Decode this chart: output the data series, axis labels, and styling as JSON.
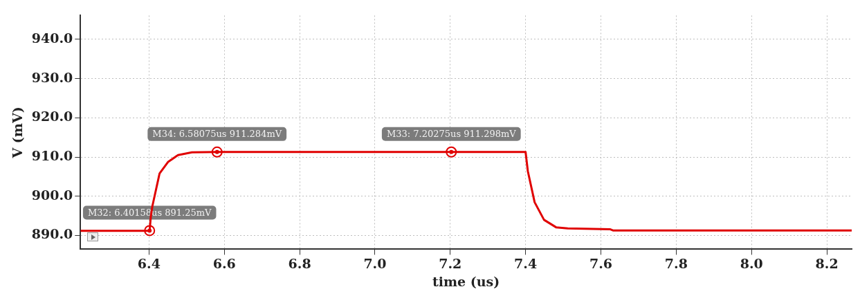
{
  "chart_data": {
    "type": "line",
    "xlabel": "time (us)",
    "ylabel": "V (mV)",
    "xlim": [
      6.218,
      8.266
    ],
    "ylim": [
      886.5,
      946.1
    ],
    "xticks": [
      {
        "value": 6.4,
        "label": "6.4"
      },
      {
        "value": 6.6,
        "label": "6.6"
      },
      {
        "value": 6.8,
        "label": "6.8"
      },
      {
        "value": 7.0,
        "label": "7.0"
      },
      {
        "value": 7.2,
        "label": "7.2"
      },
      {
        "value": 7.4,
        "label": "7.4"
      },
      {
        "value": 7.6,
        "label": "7.6"
      },
      {
        "value": 7.8,
        "label": "7.8"
      },
      {
        "value": 8.0,
        "label": "8.0"
      },
      {
        "value": 8.2,
        "label": "8.2"
      }
    ],
    "yticks": [
      {
        "value": 890,
        "label": "890.0"
      },
      {
        "value": 900,
        "label": "900.0"
      },
      {
        "value": 910,
        "label": "910.0"
      },
      {
        "value": 920,
        "label": "920.0"
      },
      {
        "value": 930,
        "label": "930.0"
      },
      {
        "value": 940,
        "label": "940.0"
      }
    ],
    "series": [
      {
        "color": "#e00000",
        "x": [
          6.218,
          6.4016,
          6.405,
          6.409,
          6.428,
          6.451,
          6.477,
          6.514,
          6.58075,
          7.20275,
          7.4,
          7.406,
          7.424,
          7.449,
          7.481,
          7.512,
          7.624,
          7.632,
          8.266
        ],
        "values": [
          891.2,
          891.2,
          895,
          897.5,
          905.8,
          908.8,
          910.5,
          911.2,
          911.3,
          911.3,
          911.3,
          906.4,
          898.5,
          894,
          892.1,
          891.8,
          891.6,
          891.3,
          891.3
        ]
      }
    ],
    "annotations": [
      {
        "text": "M32: 6.40158us 891.25mV",
        "x": 6.40158,
        "y": 891.25
      },
      {
        "text": "M34: 6.58075us 911.284mV",
        "x": 6.58075,
        "y": 911.284
      },
      {
        "text": "M33: 7.20275us 911.298mV",
        "x": 7.20275,
        "y": 911.298
      }
    ],
    "grid": true,
    "legend": false,
    "marker": "none",
    "line_style": "solid"
  }
}
